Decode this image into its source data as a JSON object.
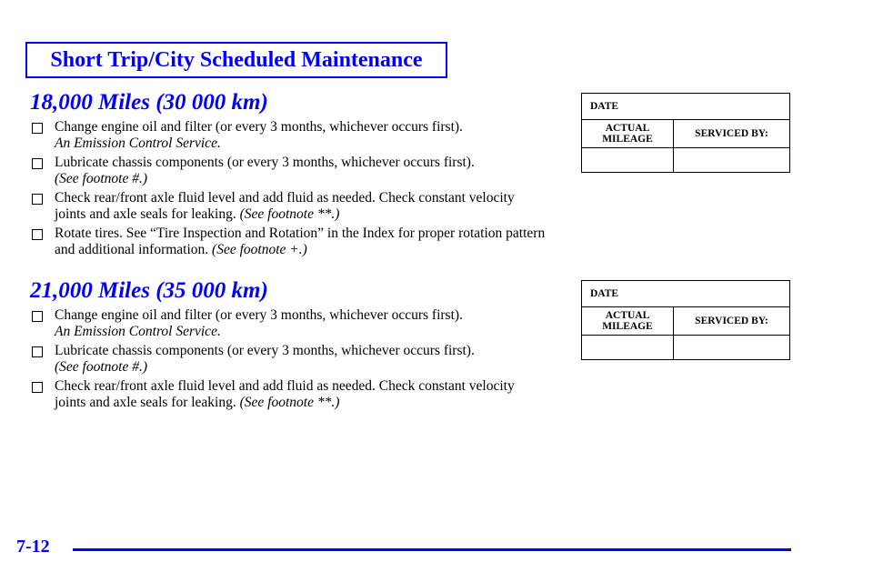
{
  "header": {
    "title": "Short Trip/City Scheduled Maintenance"
  },
  "sections": [
    {
      "heading": "18,000 Miles (30 000 km)",
      "items": [
        {
          "text": "Change engine oil and filter (or every 3 months, whichever occurs first).",
          "note": "An Emission Control Service."
        },
        {
          "text": "Lubricate chassis components (or every 3 months, whichever occurs first).",
          "note": "(See footnote #.)"
        },
        {
          "text": "Check rear/front axle fluid level and add fluid as needed. Check constant velocity joints and axle seals for leaking.",
          "note": "(See footnote **.)"
        },
        {
          "text": "Rotate tires. See “Tire Inspection and Rotation” in the Index for proper rotation pattern and additional information.",
          "note": "(See footnote +.)"
        }
      ]
    },
    {
      "heading": "21,000 Miles (35 000 km)",
      "items": [
        {
          "text": "Change engine oil and filter (or every 3 months, whichever occurs first).",
          "note": "An Emission Control Service."
        },
        {
          "text": "Lubricate chassis components (or every 3 months, whichever occurs first).",
          "note": "(See footnote #.)"
        },
        {
          "text": "Check rear/front axle fluid level and add fluid as needed. Check constant velocity joints and axle seals for leaking.",
          "note": "(See footnote **.)"
        }
      ]
    }
  ],
  "log": {
    "date": "DATE",
    "mileage_1": "ACTUAL",
    "mileage_2": "MILEAGE",
    "serviced": "SERVICED BY:"
  },
  "footer": {
    "page": "7-12"
  },
  "colors": {
    "accent": "#0000ff"
  }
}
